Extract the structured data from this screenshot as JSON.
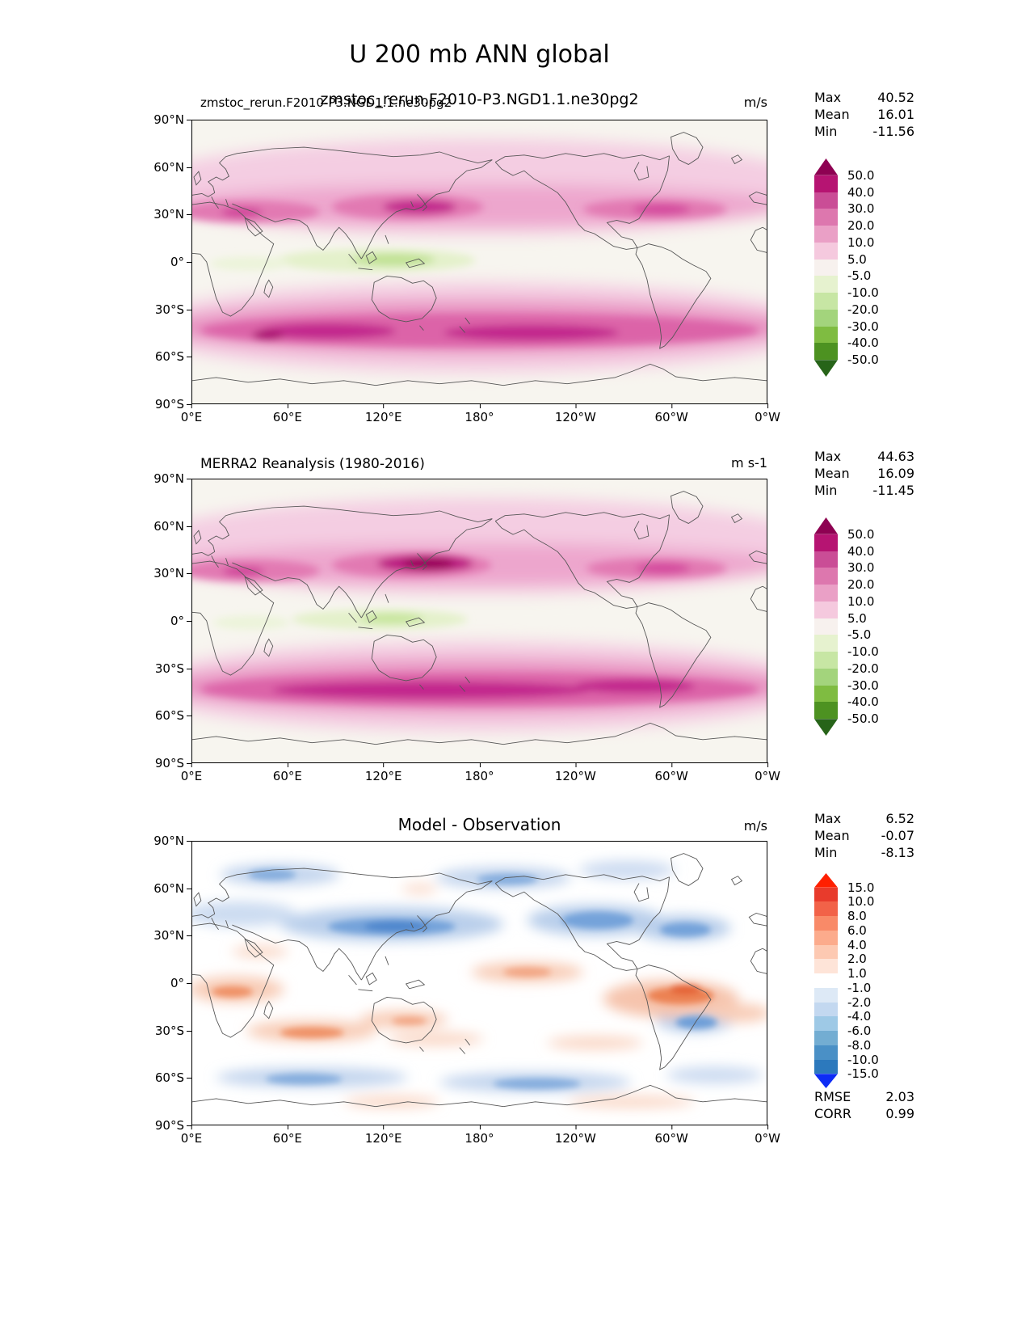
{
  "figure": {
    "title": "U 200 mb ANN global"
  },
  "axis": {
    "yticks": [
      "90°N",
      "60°N",
      "30°N",
      "0°",
      "30°S",
      "60°S",
      "90°S"
    ],
    "xticks": [
      "0°E",
      "60°E",
      "120°E",
      "180°",
      "120°W",
      "60°W",
      "0°W"
    ]
  },
  "cbar_wind": {
    "labels": [
      "50.0",
      "40.0",
      "30.0",
      "20.0",
      "10.0",
      "5.0",
      "-5.0",
      "-10.0",
      "-20.0",
      "-30.0",
      "-40.0",
      "-50.0"
    ]
  },
  "cbar_diff": {
    "labels": [
      "15.0",
      "10.0",
      "8.0",
      "6.0",
      "4.0",
      "2.0",
      "1.0",
      "-1.0",
      "-2.0",
      "-4.0",
      "-6.0",
      "-8.0",
      "-10.0",
      "-15.0"
    ]
  },
  "panel1": {
    "title_small": "zmstoc_rerun.F2010-P3.NGD1.1.ne30pg2",
    "title_large": "zmstoc_rerun.F2010-P3.NGD1.1.ne30pg2",
    "units": "m/s",
    "stats": {
      "max_label": "Max",
      "max": "40.52",
      "mean_label": "Mean",
      "mean": "16.01",
      "min_label": "Min",
      "min": "-11.56"
    }
  },
  "panel2": {
    "title": "MERRA2 Reanalysis (1980-2016)",
    "units": "m s-1",
    "stats": {
      "max_label": "Max",
      "max": "44.63",
      "mean_label": "Mean",
      "mean": "16.09",
      "min_label": "Min",
      "min": "-11.45"
    }
  },
  "panel3": {
    "title": "Model - Observation",
    "units": "m/s",
    "stats": {
      "max_label": "Max",
      "max": "6.52",
      "mean_label": "Mean",
      "mean": "-0.07",
      "min_label": "Min",
      "min": "-8.13"
    },
    "rmse_label": "RMSE",
    "rmse": "2.03",
    "corr_label": "CORR",
    "corr": "0.99"
  },
  "chart_data": [
    {
      "type": "heatmap",
      "panel": "model",
      "title": "zmstoc_rerun.F2010-P3.NGD1.1.ne30pg2",
      "units": "m/s",
      "stats": {
        "max": 40.52,
        "mean": 16.01,
        "min": -11.56
      },
      "contour_levels": [
        -50,
        -40,
        -30,
        -20,
        -10,
        -5,
        5,
        10,
        20,
        30,
        40,
        50
      ],
      "colormap": [
        "#8e0152",
        "#b61472",
        "#ca4d96",
        "#dd77ae",
        "#eaa0c6",
        "#f5c9de",
        "#f7f1ee",
        "#e6f2cf",
        "#c7e6a4",
        "#a3d47c",
        "#7fbc41",
        "#4d9221",
        "#276419"
      ],
      "x_axis": {
        "ticks": [
          "0°E",
          "60°E",
          "120°E",
          "180°",
          "120°W",
          "60°W",
          "0°W"
        ],
        "range_deg": [
          0,
          360
        ]
      },
      "y_axis": {
        "ticks": [
          "90°N",
          "60°N",
          "30°N",
          "0°",
          "30°S",
          "60°S",
          "90°S"
        ],
        "range_deg": [
          -90,
          90
        ]
      },
      "zonal_mean_estimate": {
        "lat": [
          90,
          75,
          60,
          45,
          30,
          15,
          0,
          -15,
          -30,
          -45,
          -60,
          -75,
          -90
        ],
        "u_ms": [
          4,
          10,
          15,
          24,
          30,
          11,
          -3,
          7,
          28,
          31,
          15,
          7,
          2
        ]
      }
    },
    {
      "type": "heatmap",
      "panel": "reference",
      "title": "MERRA2 Reanalysis (1980-2016)",
      "units": "m s-1",
      "stats": {
        "max": 44.63,
        "mean": 16.09,
        "min": -11.45
      },
      "contour_levels": [
        -50,
        -40,
        -30,
        -20,
        -10,
        -5,
        5,
        10,
        20,
        30,
        40,
        50
      ],
      "colormap": [
        "#8e0152",
        "#b61472",
        "#ca4d96",
        "#dd77ae",
        "#eaa0c6",
        "#f5c9de",
        "#f7f1ee",
        "#e6f2cf",
        "#c7e6a4",
        "#a3d47c",
        "#7fbc41",
        "#4d9221",
        "#276419"
      ],
      "x_axis": {
        "ticks": [
          "0°E",
          "60°E",
          "120°E",
          "180°",
          "120°W",
          "60°W",
          "0°W"
        ],
        "range_deg": [
          0,
          360
        ]
      },
      "y_axis": {
        "ticks": [
          "90°N",
          "60°N",
          "30°N",
          "0°",
          "30°S",
          "60°S",
          "90°S"
        ],
        "range_deg": [
          -90,
          90
        ]
      },
      "zonal_mean_estimate": {
        "lat": [
          90,
          75,
          60,
          45,
          30,
          15,
          0,
          -15,
          -30,
          -45,
          -60,
          -75,
          -90
        ],
        "u_ms": [
          4,
          10,
          15,
          25,
          33,
          12,
          -4,
          7,
          30,
          32,
          15,
          7,
          2
        ]
      }
    },
    {
      "type": "heatmap",
      "panel": "difference",
      "title": "Model - Observation",
      "units": "m/s",
      "stats": {
        "max": 6.52,
        "mean": -0.07,
        "min": -8.13,
        "rmse": 2.03,
        "corr": 0.99
      },
      "contour_levels": [
        -15,
        -10,
        -8,
        -6,
        -4,
        -2,
        -1,
        1,
        2,
        4,
        6,
        8,
        10,
        15
      ],
      "colormap": [
        "#ff2000",
        "#e83b2c",
        "#f26248",
        "#f98a68",
        "#fcab8c",
        "#fdc9b2",
        "#fee4d8",
        "#ffffff",
        "#dde9f6",
        "#c3d8f0",
        "#9ec9e6",
        "#73add2",
        "#4a90c6",
        "#2c79bd",
        "#0d2cf5"
      ],
      "x_axis": {
        "ticks": [
          "0°E",
          "60°E",
          "120°E",
          "180°",
          "120°W",
          "60°W",
          "0°W"
        ],
        "range_deg": [
          0,
          360
        ]
      },
      "y_axis": {
        "ticks": [
          "90°N",
          "60°N",
          "30°N",
          "0°",
          "30°S",
          "60°S",
          "90°S"
        ],
        "range_deg": [
          -90,
          90
        ]
      },
      "zonal_mean_estimate": {
        "lat": [
          90,
          60,
          35,
          15,
          0,
          -15,
          -30,
          -45,
          -60,
          -90
        ],
        "u_ms": [
          -1,
          -2,
          -4,
          1,
          2,
          1,
          2,
          1,
          -2,
          0
        ]
      }
    }
  ]
}
